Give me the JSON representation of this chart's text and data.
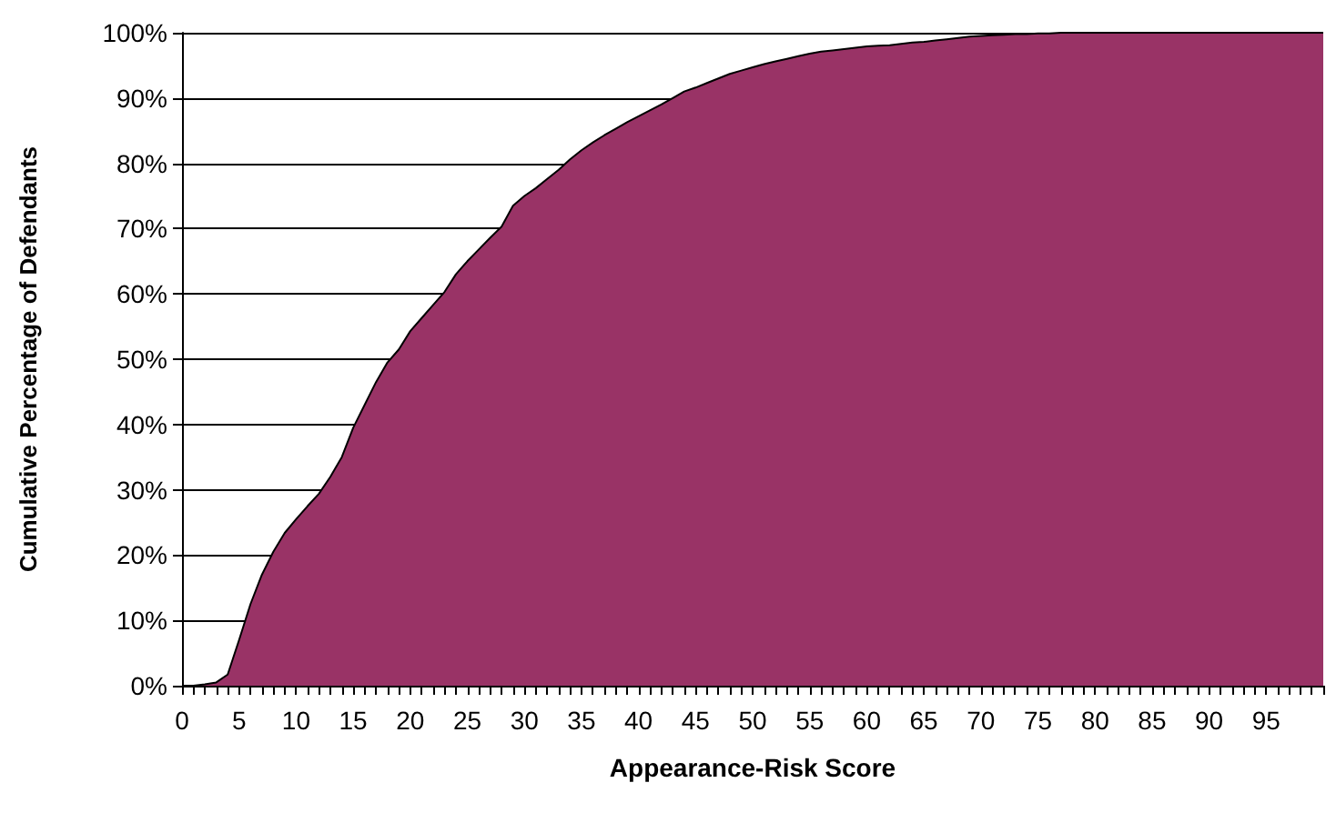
{
  "chart_data": {
    "type": "area",
    "xlabel": "Appearance-Risk Score",
    "ylabel": "Cumulative Percentage of Defendants",
    "x": [
      0,
      1,
      2,
      3,
      4,
      5,
      6,
      7,
      8,
      9,
      10,
      11,
      12,
      13,
      14,
      15,
      16,
      17,
      18,
      19,
      20,
      21,
      22,
      23,
      24,
      25,
      26,
      27,
      28,
      29,
      30,
      31,
      32,
      33,
      34,
      35,
      36,
      37,
      38,
      39,
      40,
      41,
      42,
      43,
      44,
      45,
      46,
      47,
      48,
      49,
      50,
      51,
      52,
      53,
      54,
      55,
      56,
      57,
      58,
      59,
      60,
      61,
      62,
      63,
      64,
      65,
      66,
      67,
      68,
      69,
      70,
      71,
      72,
      73,
      74,
      75,
      76,
      77,
      78,
      79,
      80,
      81,
      82,
      83,
      84,
      85,
      86,
      87,
      88,
      89,
      90,
      91,
      92,
      93,
      94,
      95,
      96,
      97,
      98,
      99,
      100
    ],
    "series": [
      {
        "color": "#993366",
        "values": [
          0,
          0,
          0.2,
          0.5,
          1.7,
          7,
          12.5,
          17,
          20.5,
          23.4,
          25.5,
          27.5,
          29.4,
          32,
          35,
          39.5,
          43,
          46.5,
          49.5,
          51.5,
          54.3,
          56.3,
          58.3,
          60.3,
          63,
          65,
          66.8,
          68.6,
          70.3,
          73.5,
          75,
          76.2,
          77.6,
          79,
          80.6,
          82,
          83.2,
          84.3,
          85.3,
          86.3,
          87.2,
          88.1,
          89,
          90,
          91,
          91.6,
          92.3,
          93,
          93.7,
          94.2,
          94.7,
          95.2,
          95.6,
          96,
          96.4,
          96.8,
          97.1,
          97.3,
          97.5,
          97.7,
          97.9,
          98,
          98.1,
          98.3,
          98.5,
          98.6,
          98.8,
          99,
          99.2,
          99.4,
          99.5,
          99.6,
          99.7,
          99.8,
          99.8,
          99.9,
          99.9,
          100,
          100,
          100,
          100,
          100,
          100,
          100,
          100,
          100,
          100,
          100,
          100,
          100,
          100,
          100,
          100,
          100,
          100,
          100,
          100,
          100,
          100,
          100,
          100
        ]
      }
    ],
    "xlim": [
      0,
      100
    ],
    "xticks": [
      0,
      {
        "value": 1,
        "label": null
      },
      {
        "value": 2,
        "label": null
      },
      {
        "value": 3,
        "label": null
      },
      {
        "value": 4,
        "label": null
      },
      5,
      {
        "value": 6,
        "label": null
      },
      {
        "value": 7,
        "label": null
      },
      {
        "value": 8,
        "label": null
      },
      {
        "value": 9,
        "label": null
      },
      10,
      {
        "value": 11,
        "label": null
      },
      {
        "value": 12,
        "label": null
      },
      {
        "value": 13,
        "label": null
      },
      {
        "value": 14,
        "label": null
      },
      15,
      {
        "value": 16,
        "label": null
      },
      {
        "value": 17,
        "label": null
      },
      {
        "value": 18,
        "label": null
      },
      {
        "value": 19,
        "label": null
      },
      20,
      {
        "value": 21,
        "label": null
      },
      {
        "value": 22,
        "label": null
      },
      {
        "value": 23,
        "label": null
      },
      {
        "value": 24,
        "label": null
      },
      25,
      {
        "value": 26,
        "label": null
      },
      {
        "value": 27,
        "label": null
      },
      {
        "value": 28,
        "label": null
      },
      {
        "value": 29,
        "label": null
      },
      30,
      {
        "value": 31,
        "label": null
      },
      {
        "value": 32,
        "label": null
      },
      {
        "value": 33,
        "label": null
      },
      {
        "value": 34,
        "label": null
      },
      35,
      {
        "value": 36,
        "label": null
      },
      {
        "value": 37,
        "label": null
      },
      {
        "value": 38,
        "label": null
      },
      {
        "value": 39,
        "label": null
      },
      40,
      {
        "value": 41,
        "label": null
      },
      {
        "value": 42,
        "label": null
      },
      {
        "value": 43,
        "label": null
      },
      {
        "value": 44,
        "label": null
      },
      45,
      {
        "value": 46,
        "label": null
      },
      {
        "value": 47,
        "label": null
      },
      {
        "value": 48,
        "label": null
      },
      {
        "value": 49,
        "label": null
      },
      50,
      {
        "value": 51,
        "label": null
      },
      {
        "value": 52,
        "label": null
      },
      {
        "value": 53,
        "label": null
      },
      {
        "value": 54,
        "label": null
      },
      55,
      {
        "value": 56,
        "label": null
      },
      {
        "value": 57,
        "label": null
      },
      {
        "value": 58,
        "label": null
      },
      {
        "value": 59,
        "label": null
      },
      60,
      {
        "value": 61,
        "label": null
      },
      {
        "value": 62,
        "label": null
      },
      {
        "value": 63,
        "label": null
      },
      {
        "value": 64,
        "label": null
      },
      65,
      {
        "value": 66,
        "label": null
      },
      {
        "value": 67,
        "label": null
      },
      {
        "value": 68,
        "label": null
      },
      {
        "value": 69,
        "label": null
      },
      70,
      {
        "value": 71,
        "label": null
      },
      {
        "value": 72,
        "label": null
      },
      {
        "value": 73,
        "label": null
      },
      {
        "value": 74,
        "label": null
      },
      75,
      {
        "value": 76,
        "label": null
      },
      {
        "value": 77,
        "label": null
      },
      {
        "value": 78,
        "label": null
      },
      {
        "value": 79,
        "label": null
      },
      80,
      {
        "value": 81,
        "label": null
      },
      {
        "value": 82,
        "label": null
      },
      {
        "value": 83,
        "label": null
      },
      {
        "value": 84,
        "label": null
      },
      85,
      {
        "value": 86,
        "label": null
      },
      {
        "value": 87,
        "label": null
      },
      {
        "value": 88,
        "label": null
      },
      {
        "value": 89,
        "label": null
      },
      90,
      {
        "value": 91,
        "label": null
      },
      {
        "value": 92,
        "label": null
      },
      {
        "value": 93,
        "label": null
      },
      {
        "value": 94,
        "label": null
      },
      95,
      {
        "value": 96,
        "label": null
      },
      {
        "value": 97,
        "label": null
      },
      {
        "value": 98,
        "label": null
      },
      {
        "value": 99,
        "label": null
      },
      {
        "value": 100,
        "label": null
      }
    ],
    "ylim": [
      0,
      100
    ],
    "yticks": [
      {
        "value": 0,
        "label": "0%"
      },
      {
        "value": 10,
        "label": "10%"
      },
      {
        "value": 20,
        "label": "20%"
      },
      {
        "value": 30,
        "label": "30%"
      },
      {
        "value": 40,
        "label": "40%"
      },
      {
        "value": 50,
        "label": "50%"
      },
      {
        "value": 60,
        "label": "60%"
      },
      {
        "value": 70,
        "label": "70%"
      },
      {
        "value": 80,
        "label": "80%"
      },
      {
        "value": 90,
        "label": "90%"
      },
      {
        "value": 100,
        "label": "100%"
      }
    ],
    "grid": "y",
    "marker": "none",
    "line_style": "solid"
  }
}
